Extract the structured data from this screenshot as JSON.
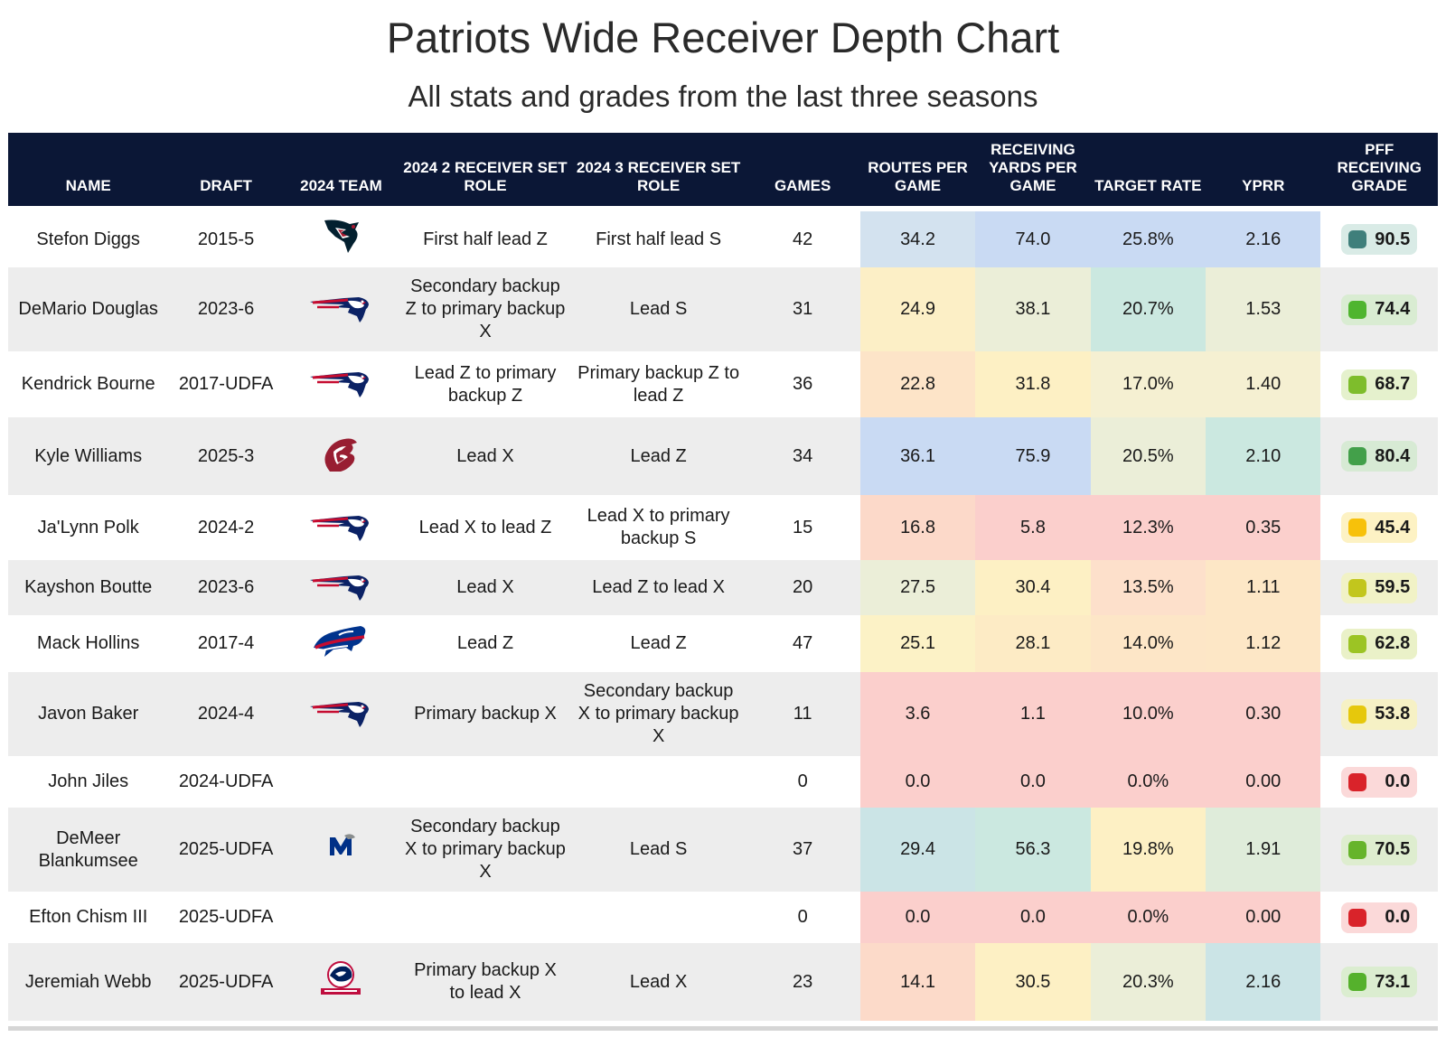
{
  "title": "Patriots Wide Receiver Depth Chart",
  "subtitle": "All stats and grades from the last three seasons",
  "chart_data": {
    "type": "table",
    "columns": [
      {
        "key": "name",
        "label": "NAME"
      },
      {
        "key": "draft",
        "label": "DRAFT"
      },
      {
        "key": "team",
        "label": "2024 TEAM"
      },
      {
        "key": "role2",
        "label": "2024 2 RECEIVER SET ROLE"
      },
      {
        "key": "role3",
        "label": "2024 3 RECEIVER SET ROLE"
      },
      {
        "key": "games",
        "label": "GAMES"
      },
      {
        "key": "routes",
        "label": "ROUTES PER GAME"
      },
      {
        "key": "yards",
        "label": "RECEIVING YARDS PER GAME"
      },
      {
        "key": "target",
        "label": "TARGET RATE"
      },
      {
        "key": "yprr",
        "label": "YPRR"
      },
      {
        "key": "grade",
        "label": "PFF RECEIVING GRADE"
      }
    ],
    "rows": [
      {
        "name": "Stefon Diggs",
        "draft": "2015-5",
        "team_logo": "houston-texans-logo-icon",
        "role2": "First half lead Z",
        "role3": "First half lead S",
        "games": "42",
        "routes": "34.2",
        "yards": "74.0",
        "target": "25.8%",
        "yprr": "2.16",
        "grade": "90.5",
        "colors": {
          "routes": "#d3e2ef",
          "yards": "#c9daf3",
          "target": "#c9daf3",
          "yprr": "#c9daf3",
          "grade_bg": "#d9ebe6",
          "grade_dot": "#3f7f7b"
        }
      },
      {
        "name": "DeMario Douglas",
        "draft": "2023-6",
        "team_logo": "patriots-logo-icon",
        "role2": "Secondary backup Z to primary backup X",
        "role3": "Lead S",
        "games": "31",
        "routes": "24.9",
        "yards": "38.1",
        "target": "20.7%",
        "yprr": "1.53",
        "grade": "74.4",
        "colors": {
          "routes": "#fcefc6",
          "yards": "#ebeed8",
          "target": "#cbe8e0",
          "yprr": "#ebeed8",
          "grade_bg": "#d9ecd2",
          "grade_dot": "#4fb52f"
        }
      },
      {
        "name": "Kendrick Bourne",
        "draft": "2017-UDFA",
        "team_logo": "patriots-logo-icon",
        "role2": "Lead Z to primary backup Z",
        "role3": "Primary backup Z to lead Z",
        "games": "36",
        "routes": "22.8",
        "yards": "31.8",
        "target": "17.0%",
        "yprr": "1.40",
        "grade": "68.7",
        "colors": {
          "routes": "#fde4c8",
          "yards": "#fdf0c4",
          "target": "#f5f0d2",
          "yprr": "#f5f0d2",
          "grade_bg": "#e5f1cd",
          "grade_dot": "#7ebd2c"
        }
      },
      {
        "name": "Kyle Williams",
        "draft": "2025-3",
        "team_logo": "washington-state-cougars-logo-icon",
        "role2": "Lead X",
        "role3": "Lead Z",
        "games": "34",
        "routes": "36.1",
        "yards": "75.9",
        "target": "20.5%",
        "yprr": "2.10",
        "grade": "80.4",
        "colors": {
          "routes": "#c9daf3",
          "yards": "#c9daf3",
          "target": "#ebeed8",
          "yprr": "#cbe8e0",
          "grade_bg": "#d7ead4",
          "grade_dot": "#43a04a"
        }
      },
      {
        "name": "Ja'Lynn Polk",
        "draft": "2024-2",
        "team_logo": "patriots-logo-icon",
        "role2": "Lead X to lead Z",
        "role3": "Lead X to primary backup S",
        "games": "15",
        "routes": "16.8",
        "yards": "5.8",
        "target": "12.3%",
        "yprr": "0.35",
        "grade": "45.4",
        "colors": {
          "routes": "#fcd9c9",
          "yards": "#fbcfcc",
          "target": "#fbcfcc",
          "yprr": "#fbcfcc",
          "grade_bg": "#fdf2c4",
          "grade_dot": "#f7c10a"
        }
      },
      {
        "name": "Kayshon Boutte",
        "draft": "2023-6",
        "team_logo": "patriots-logo-icon",
        "role2": "Lead X",
        "role3": "Lead Z to lead X",
        "games": "20",
        "routes": "27.5",
        "yards": "30.4",
        "target": "13.5%",
        "yprr": "1.11",
        "grade": "59.5",
        "colors": {
          "routes": "#ebeed8",
          "yards": "#fdf0c4",
          "target": "#fde0cb",
          "yprr": "#fde7c6",
          "grade_bg": "#f1f2c6",
          "grade_dot": "#c2c61d"
        }
      },
      {
        "name": "Mack Hollins",
        "draft": "2017-4",
        "team_logo": "buffalo-bills-logo-icon",
        "role2": "Lead Z",
        "role3": "Lead Z",
        "games": "47",
        "routes": "25.1",
        "yards": "28.1",
        "target": "14.0%",
        "yprr": "1.12",
        "grade": "62.8",
        "colors": {
          "routes": "#fcf2c6",
          "yards": "#fdebc5",
          "target": "#fde6c7",
          "yprr": "#fde7c6",
          "grade_bg": "#eaf1c8",
          "grade_dot": "#9cc424"
        }
      },
      {
        "name": "Javon Baker",
        "draft": "2024-4",
        "team_logo": "patriots-logo-icon",
        "role2": "Primary backup X",
        "role3": "Secondary backup X to primary backup X",
        "games": "11",
        "routes": "3.6",
        "yards": "1.1",
        "target": "10.0%",
        "yprr": "0.30",
        "grade": "53.8",
        "colors": {
          "routes": "#fbcfcc",
          "yards": "#fbcfcc",
          "target": "#fbcfcc",
          "yprr": "#fbcfcc",
          "grade_bg": "#f6f1c5",
          "grade_dot": "#e6c80c"
        }
      },
      {
        "name": "John Jiles",
        "draft": "2024-UDFA",
        "team_logo": "",
        "role2": "",
        "role3": "",
        "games": "0",
        "routes": "0.0",
        "yards": "0.0",
        "target": "0.0%",
        "yprr": "0.00",
        "grade": "0.0",
        "colors": {
          "routes": "#fbcfcc",
          "yards": "#fbcfcc",
          "target": "#fbcfcc",
          "yprr": "#fbcfcc",
          "grade_bg": "#fbd9d9",
          "grade_dot": "#d9232a"
        }
      },
      {
        "name": "DeMeer Blankumsee",
        "draft": "2025-UDFA",
        "team_logo": "memphis-tigers-logo-icon",
        "role2": "Secondary backup X to primary backup X",
        "role3": "Lead S",
        "games": "37",
        "routes": "29.4",
        "yards": "56.3",
        "target": "19.8%",
        "yprr": "1.91",
        "grade": "70.5",
        "colors": {
          "routes": "#cbe4e6",
          "yards": "#cbe8e0",
          "target": "#fdf0c4",
          "yprr": "#dfecda",
          "grade_bg": "#deedcf",
          "grade_dot": "#66b42b"
        }
      },
      {
        "name": "Efton Chism III",
        "draft": "2025-UDFA",
        "team_logo": "",
        "role2": "",
        "role3": "",
        "games": "0",
        "routes": "0.0",
        "yards": "0.0",
        "target": "0.0%",
        "yprr": "0.00",
        "grade": "0.0",
        "colors": {
          "routes": "#fbcfcc",
          "yards": "#fbcfcc",
          "target": "#fbcfcc",
          "yprr": "#fbcfcc",
          "grade_bg": "#fbd9d9",
          "grade_dot": "#d9232a"
        }
      },
      {
        "name": "Jeremiah Webb",
        "draft": "2025-UDFA",
        "team_logo": "south-alabama-jaguars-logo-icon",
        "role2": "Primary backup X to lead X",
        "role3": "Lead X",
        "games": "23",
        "routes": "14.1",
        "yards": "30.5",
        "target": "20.3%",
        "yprr": "2.16",
        "grade": "73.1",
        "colors": {
          "routes": "#fcdac9",
          "yards": "#fdf0c4",
          "target": "#ebeed8",
          "yprr": "#cbe4e6",
          "grade_bg": "#dbedd0",
          "grade_dot": "#55b12c"
        }
      }
    ]
  }
}
